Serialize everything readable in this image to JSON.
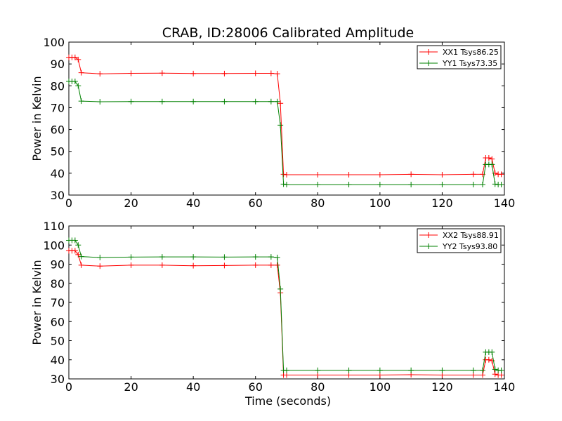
{
  "chart_data": [
    {
      "type": "line",
      "title": "CRAB, ID:28006 Calibrated Amplitude",
      "xlabel": "",
      "ylabel": "Power in Kelvin",
      "xlim": [
        0,
        140
      ],
      "ylim": [
        30,
        100
      ],
      "xticks": [
        "0",
        "20",
        "40",
        "60",
        "80",
        "100",
        "120",
        "140"
      ],
      "yticks": [
        "30",
        "40",
        "50",
        "60",
        "70",
        "80",
        "90",
        "100"
      ],
      "legend_position": "top-right",
      "series": [
        {
          "name": "XX1 Tsys86.25",
          "color": "#ff0000",
          "x": [
            0,
            1,
            2,
            3,
            4,
            10,
            20,
            30,
            40,
            50,
            60,
            65,
            67,
            68,
            69,
            70,
            80,
            90,
            100,
            110,
            120,
            130,
            133,
            134,
            135,
            136,
            137,
            138,
            139
          ],
          "y": [
            93,
            93,
            93,
            92,
            86,
            85.5,
            85.7,
            85.8,
            85.6,
            85.6,
            85.7,
            85.7,
            85.5,
            72,
            39.5,
            39.3,
            39.3,
            39.3,
            39.3,
            39.5,
            39.3,
            39.5,
            39.5,
            47,
            47,
            46.5,
            40,
            39.5,
            39.5
          ]
        },
        {
          "name": "YY1 Tsys73.35",
          "color": "#008000",
          "x": [
            0,
            1,
            2,
            3,
            4,
            10,
            20,
            30,
            40,
            50,
            60,
            65,
            67,
            68,
            69,
            70,
            80,
            90,
            100,
            110,
            120,
            130,
            133,
            134,
            135,
            136,
            137,
            138,
            139
          ],
          "y": [
            82,
            82,
            82,
            80,
            73,
            72.7,
            72.8,
            72.8,
            72.8,
            72.8,
            72.8,
            72.8,
            72.8,
            62,
            35,
            34.8,
            34.8,
            34.8,
            34.8,
            34.8,
            34.8,
            34.8,
            34.8,
            44,
            44,
            44,
            35,
            34.8,
            34.8
          ]
        }
      ]
    },
    {
      "type": "line",
      "title": "",
      "xlabel": "Time (seconds)",
      "ylabel": "Power in Kelvin",
      "xlim": [
        0,
        140
      ],
      "ylim": [
        30,
        110
      ],
      "xticks": [
        "0",
        "20",
        "40",
        "60",
        "80",
        "100",
        "120",
        "140"
      ],
      "yticks": [
        "30",
        "40",
        "50",
        "60",
        "70",
        "80",
        "90",
        "100",
        "110"
      ],
      "legend_position": "top-right",
      "series": [
        {
          "name": "XX2 Tsys88.91",
          "color": "#ff0000",
          "x": [
            0,
            1,
            2,
            3,
            4,
            10,
            20,
            30,
            40,
            50,
            60,
            65,
            67,
            68,
            69,
            70,
            80,
            90,
            100,
            110,
            120,
            130,
            133,
            134,
            135,
            136,
            137,
            138,
            139
          ],
          "y": [
            97,
            97,
            97,
            95,
            89.5,
            89,
            89.5,
            89.5,
            89.2,
            89.3,
            89.5,
            89.5,
            89.5,
            75,
            32,
            32,
            32,
            32,
            32,
            32.2,
            32,
            32,
            32,
            40,
            40,
            39.5,
            32.5,
            32,
            32
          ]
        },
        {
          "name": "YY2 Tsys93.80",
          "color": "#008000",
          "x": [
            0,
            1,
            2,
            3,
            4,
            10,
            20,
            30,
            40,
            50,
            60,
            65,
            67,
            68,
            69,
            70,
            80,
            90,
            100,
            110,
            120,
            130,
            133,
            134,
            135,
            136,
            137,
            138,
            139
          ],
          "y": [
            102.5,
            102.5,
            102.5,
            100,
            94,
            93.5,
            93.7,
            93.8,
            93.8,
            93.7,
            93.8,
            93.8,
            93.5,
            77,
            34.5,
            34.5,
            34.5,
            34.5,
            34.5,
            34.5,
            34.5,
            34.5,
            34.5,
            44,
            44,
            44,
            35,
            34.5,
            34.5
          ]
        }
      ]
    }
  ]
}
